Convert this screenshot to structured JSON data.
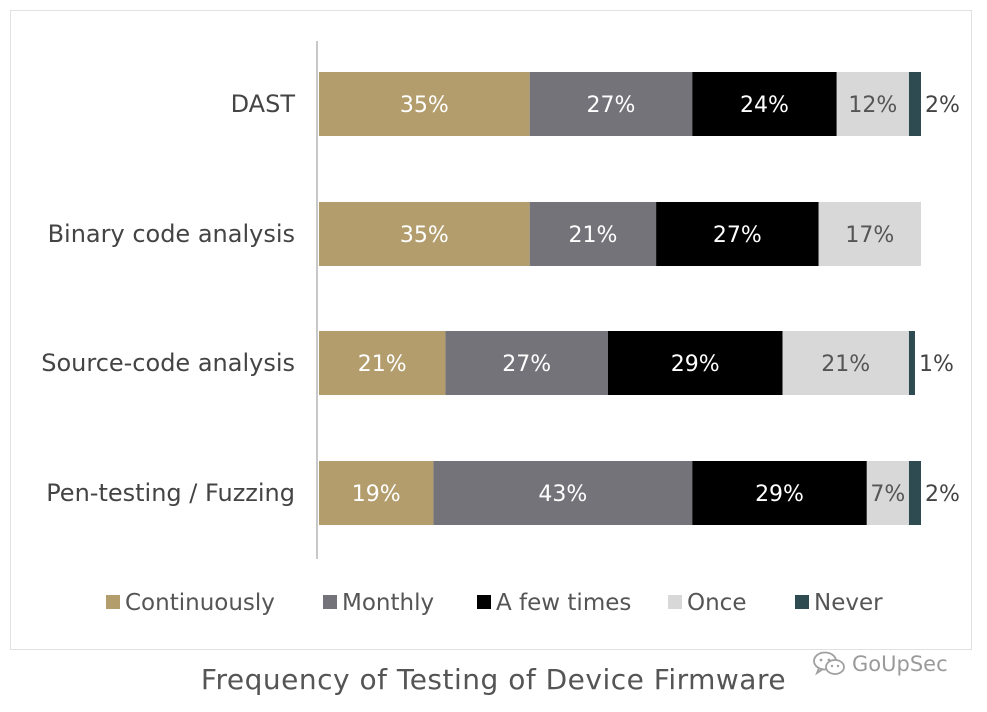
{
  "chart_data": {
    "type": "bar",
    "orientation": "horizontal",
    "stacked": true,
    "title": "Frequency of Testing of Device Firmware",
    "categories": [
      "DAST",
      "Binary code analysis",
      "Source-code analysis",
      "Pen-testing / Fuzzing"
    ],
    "series": [
      {
        "name": "Continuously",
        "color": "#b39d6d",
        "values": [
          35,
          35,
          21,
          19
        ]
      },
      {
        "name": "Monthly",
        "color": "#75737a",
        "values": [
          27,
          21,
          27,
          43
        ]
      },
      {
        "name": "A few times",
        "color": "#000000",
        "values": [
          24,
          27,
          29,
          29
        ]
      },
      {
        "name": "Once",
        "color": "#d8d8d8",
        "values": [
          12,
          17,
          21,
          7
        ]
      },
      {
        "name": "Never",
        "color": "#2f4b52",
        "values": [
          2,
          0,
          1,
          2
        ]
      }
    ],
    "value_suffix": "%",
    "xlim": [
      0,
      100
    ],
    "legend_position": "bottom",
    "grid": false
  },
  "watermark": {
    "text": "GoUpSec",
    "icon": "wechat-icon"
  }
}
